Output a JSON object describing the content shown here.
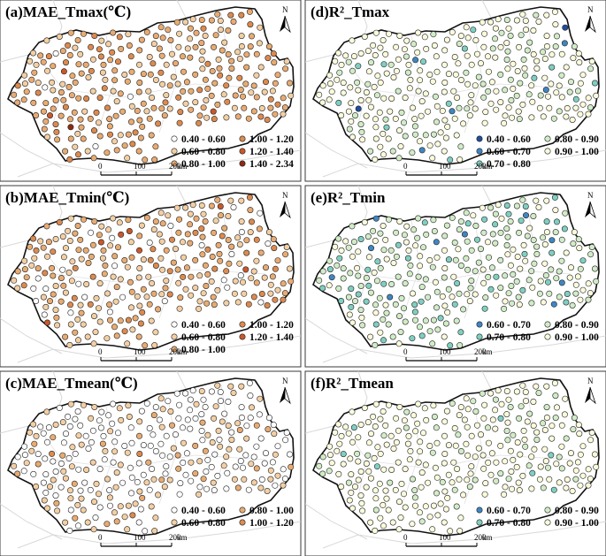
{
  "panels": [
    {
      "id": "a",
      "title": "(a)MAE_Tmax(℃)",
      "legend": [
        {
          "label": "0.40 - 0.60",
          "color": "#ffffff"
        },
        {
          "label": "0.60 - 0.80",
          "color": "#f3cfa4"
        },
        {
          "label": "0.80 - 1.00",
          "color": "#e8ab72"
        },
        {
          "label": "1.00 - 1.20",
          "color": "#dc8a4f"
        },
        {
          "label": "1.20 - 1.40",
          "color": "#c9582a"
        },
        {
          "label": "1.40 - 2.34",
          "color": "#8e2a12"
        }
      ],
      "weights": [
        0.02,
        0.3,
        0.5,
        0.14,
        0.03,
        0.01
      ]
    },
    {
      "id": "d",
      "title": "(d)R²_Tmax",
      "legend": [
        {
          "label": "0.40 - 0.60",
          "color": "#1f4e9c"
        },
        {
          "label": "0.60 - 0.70",
          "color": "#3f86c2"
        },
        {
          "label": "0.70 - 0.80",
          "color": "#7fcfc0"
        },
        {
          "label": "0.80 - 0.90",
          "color": "#d1ecc7"
        },
        {
          "label": "0.90 - 1.00",
          "color": "#fafadc"
        }
      ],
      "weights": [
        0.005,
        0.01,
        0.05,
        0.25,
        0.685
      ]
    },
    {
      "id": "b",
      "title": "(b)MAE_Tmin(℃)",
      "legend": [
        {
          "label": "0.40 - 0.60",
          "color": "#ffffff"
        },
        {
          "label": "0.60 - 0.80",
          "color": "#f3cfa4"
        },
        {
          "label": "0.80 - 1.00",
          "color": "#e8ab72"
        },
        {
          "label": "1.00 - 1.20",
          "color": "#dc8a4f"
        },
        {
          "label": "1.20 - 1.40",
          "color": "#c9582a"
        }
      ],
      "weights": [
        0.08,
        0.42,
        0.35,
        0.13,
        0.02
      ]
    },
    {
      "id": "e",
      "title": "(e)R²_Tmin",
      "legend": [
        {
          "label": "0.60 - 0.70",
          "color": "#3f86c2"
        },
        {
          "label": "0.70 - 0.80",
          "color": "#7fcfc0"
        },
        {
          "label": "0.80 - 0.90",
          "color": "#d1ecc7"
        },
        {
          "label": "0.90 - 1.00",
          "color": "#fafadc"
        }
      ],
      "weights": [
        0.04,
        0.16,
        0.5,
        0.3
      ]
    },
    {
      "id": "c",
      "title": "(c)MAE_Tmean(℃)",
      "legend": [
        {
          "label": "0.40 - 0.60",
          "color": "#ffffff"
        },
        {
          "label": "0.60 - 0.80",
          "color": "#f3cfa4"
        },
        {
          "label": "0.80 - 1.00",
          "color": "#e8ab72"
        },
        {
          "label": "1.00 - 1.20",
          "color": "#dc8a4f"
        }
      ],
      "weights": [
        0.55,
        0.35,
        0.08,
        0.02
      ]
    },
    {
      "id": "f",
      "title": "(f)R²_Tmean",
      "legend": [
        {
          "label": "0.60 - 0.70",
          "color": "#3f86c2"
        },
        {
          "label": "0.70 - 0.80",
          "color": "#7fcfc0"
        },
        {
          "label": "0.80 - 0.90",
          "color": "#d1ecc7"
        },
        {
          "label": "0.90 - 1.00",
          "color": "#fafadc"
        }
      ],
      "weights": [
        0.005,
        0.03,
        0.2,
        0.765
      ]
    }
  ],
  "scalebar": {
    "labels": [
      "0",
      "100",
      "200"
    ],
    "unit": "km"
  },
  "north_label": "N"
}
